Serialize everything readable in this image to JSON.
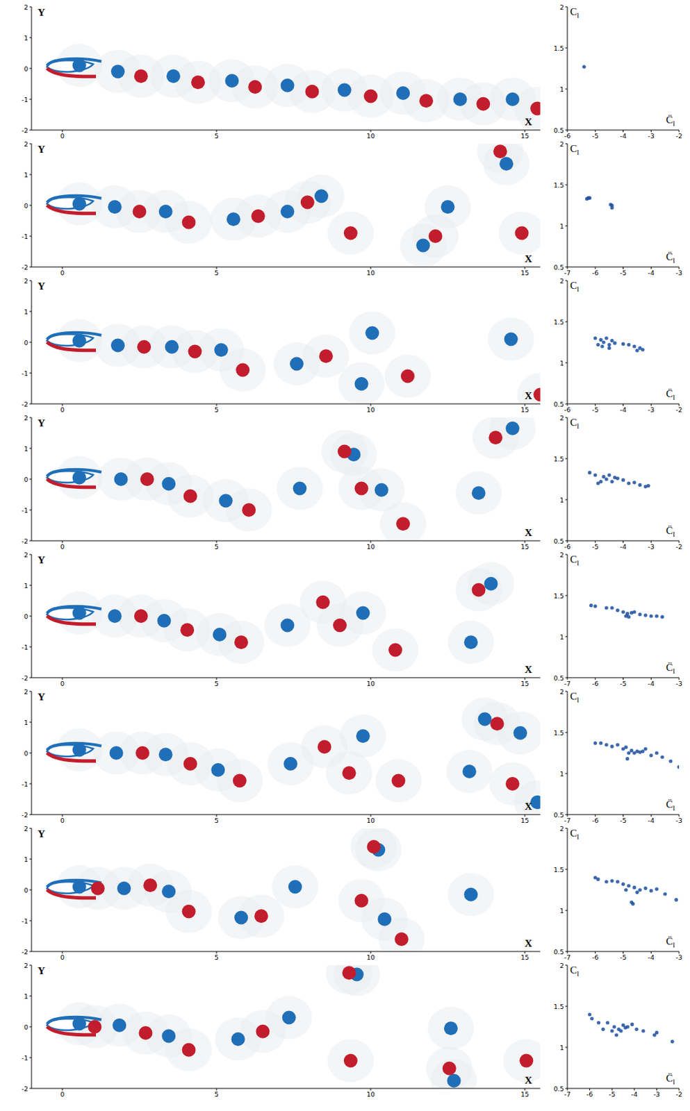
{
  "chart_data": [
    {
      "type": "scatter",
      "marker": "vortex",
      "xlabel": "X",
      "ylabel": "Y",
      "xlim": [
        -1,
        15.5
      ],
      "ylim": [
        -2,
        2
      ],
      "xticks": [
        0,
        5,
        10,
        15
      ],
      "yticks": [
        -2,
        -1,
        0,
        1,
        2
      ],
      "series": [
        {
          "color": "#1f6fb8",
          "x": [
            0.55,
            1.8,
            3.6,
            5.5,
            7.3,
            9.15,
            11.05,
            12.9,
            14.6
          ],
          "values": [
            0.1,
            -0.1,
            -0.25,
            -0.4,
            -0.55,
            -0.7,
            -0.8,
            -1.0,
            -1.0
          ]
        },
        {
          "color": "#c21d2c",
          "x": [
            2.55,
            4.4,
            6.25,
            8.1,
            10,
            11.8,
            13.65,
            15.4
          ],
          "values": [
            -0.25,
            -0.45,
            -0.6,
            -0.75,
            -0.9,
            -1.05,
            -1.15,
            -1.3
          ]
        }
      ]
    },
    {
      "type": "scatter",
      "marker": "dot",
      "xlabel": "C̈",
      "xlabel_sub": "l",
      "ylabel": "C",
      "ylabel_sub": "l",
      "xlim": [
        -6,
        -2
      ],
      "ylim": [
        0.5,
        2
      ],
      "xticks": [
        -6,
        -5,
        -4,
        -3,
        -2
      ],
      "yticks": [
        0.5,
        1,
        1.5,
        2
      ],
      "series": [
        {
          "color": "#1a4f9c",
          "x": [
            -5.4
          ],
          "values": [
            1.27
          ]
        }
      ]
    },
    {
      "type": "scatter",
      "marker": "vortex",
      "xlabel": "X",
      "ylabel": "Y",
      "xlim": [
        -1,
        15.5
      ],
      "ylim": [
        -2,
        2
      ],
      "xticks": [
        0,
        5,
        10,
        15
      ],
      "yticks": [
        -2,
        -1,
        0,
        1,
        2
      ],
      "series": [
        {
          "color": "#1f6fb8",
          "x": [
            0.55,
            1.7,
            3.35,
            5.55,
            7.3,
            8.4,
            12.5,
            11.7,
            14.4
          ],
          "values": [
            0.05,
            -0.05,
            -0.2,
            -0.45,
            -0.2,
            0.3,
            -0.05,
            -1.3,
            1.35
          ]
        },
        {
          "color": "#c21d2c",
          "x": [
            2.5,
            4.1,
            6.35,
            7.95,
            9.35,
            12.1,
            14.9,
            14.2
          ],
          "values": [
            -0.2,
            -0.55,
            -0.35,
            0.1,
            -0.9,
            -1.0,
            -0.9,
            1.75
          ]
        }
      ]
    },
    {
      "type": "scatter",
      "marker": "dot",
      "xlabel": "C̈",
      "xlabel_sub": "l",
      "ylabel": "C",
      "ylabel_sub": "l",
      "xlim": [
        -7,
        -3
      ],
      "ylim": [
        0.5,
        2
      ],
      "xticks": [
        -7,
        -6,
        -5,
        -4,
        -3
      ],
      "yticks": [
        0.5,
        1,
        1.5,
        2
      ],
      "series": [
        {
          "color": "#1a4f9c",
          "x": [
            -6.3,
            -6.25,
            -6.2,
            -5.45,
            -5.4,
            -5.4
          ],
          "values": [
            1.33,
            1.34,
            1.34,
            1.26,
            1.22,
            1.25
          ]
        }
      ]
    },
    {
      "type": "scatter",
      "marker": "vortex",
      "xlabel": "X",
      "ylabel": "Y",
      "xlim": [
        -1,
        15.5
      ],
      "ylim": [
        -2,
        2
      ],
      "xticks": [
        0,
        5,
        10,
        15
      ],
      "yticks": [
        -2,
        -1,
        0,
        1,
        2
      ],
      "series": [
        {
          "color": "#1f6fb8",
          "x": [
            0.55,
            1.8,
            3.55,
            5.15,
            7.6,
            10.05,
            9.7,
            14.55
          ],
          "values": [
            0.05,
            -0.1,
            -0.15,
            -0.25,
            -0.7,
            0.3,
            -1.35,
            0.1
          ]
        },
        {
          "color": "#c21d2c",
          "x": [
            2.65,
            4.3,
            5.85,
            8.55,
            11.2,
            15.5
          ],
          "values": [
            -0.15,
            -0.3,
            -0.9,
            -0.45,
            -1.1,
            -1.7
          ]
        }
      ]
    },
    {
      "type": "scatter",
      "marker": "dot",
      "xlabel": "C̈",
      "xlabel_sub": "l",
      "ylabel": "C",
      "ylabel_sub": "l",
      "xlim": [
        -6,
        -2
      ],
      "ylim": [
        0.5,
        2
      ],
      "xticks": [
        -6,
        -5,
        -4,
        -3,
        -2
      ],
      "yticks": [
        0.5,
        1,
        1.5,
        2
      ],
      "series": [
        {
          "color": "#1a4f9c",
          "x": [
            -5.0,
            -4.9,
            -4.8,
            -4.75,
            -4.7,
            -4.6,
            -4.5,
            -4.5,
            -4.4,
            -4.3,
            -4.0,
            -3.8,
            -3.6,
            -3.5,
            -3.3,
            -3.4
          ],
          "values": [
            1.3,
            1.22,
            1.28,
            1.2,
            1.25,
            1.3,
            1.22,
            1.18,
            1.27,
            1.24,
            1.23,
            1.22,
            1.2,
            1.15,
            1.16,
            1.18
          ]
        }
      ]
    },
    {
      "type": "scatter",
      "marker": "vortex",
      "xlabel": "X",
      "ylabel": "Y",
      "xlim": [
        -1,
        15.5
      ],
      "ylim": [
        -2,
        2
      ],
      "xticks": [
        0,
        5,
        10,
        15
      ],
      "yticks": [
        -2,
        -1,
        0,
        1,
        2
      ],
      "series": [
        {
          "color": "#1f6fb8",
          "x": [
            0.55,
            1.9,
            3.45,
            5.3,
            7.7,
            9.45,
            10.35,
            13.5,
            14.6
          ],
          "values": [
            0.05,
            0,
            -0.15,
            -0.7,
            -0.3,
            0.8,
            -0.35,
            -0.45,
            1.65
          ]
        },
        {
          "color": "#c21d2c",
          "x": [
            2.75,
            4.15,
            6.05,
            9.15,
            9.7,
            11.05,
            14.05
          ],
          "values": [
            0,
            -0.55,
            -1.0,
            0.9,
            -0.3,
            -1.45,
            1.35
          ]
        }
      ]
    },
    {
      "type": "scatter",
      "marker": "dot",
      "xlabel": "C̈",
      "xlabel_sub": "l",
      "ylabel": "C",
      "ylabel_sub": "l",
      "xlim": [
        -6,
        -2
      ],
      "ylim": [
        0.5,
        2
      ],
      "xticks": [
        -6,
        -5,
        -4,
        -3,
        -2
      ],
      "yticks": [
        0.5,
        1,
        1.5,
        2
      ],
      "series": [
        {
          "color": "#1a4f9c",
          "x": [
            -5.2,
            -5.0,
            -4.9,
            -4.8,
            -4.7,
            -4.6,
            -4.5,
            -4.4,
            -4.3,
            -4.0,
            -3.8,
            -3.6,
            -3.4,
            -3.2,
            -3.1,
            -4.2
          ],
          "values": [
            1.33,
            1.3,
            1.2,
            1.22,
            1.28,
            1.25,
            1.3,
            1.22,
            1.27,
            1.24,
            1.2,
            1.21,
            1.18,
            1.16,
            1.17,
            1.26
          ]
        }
      ]
    },
    {
      "type": "scatter",
      "marker": "vortex",
      "xlabel": "X",
      "ylabel": "Y",
      "xlim": [
        -1,
        15.5
      ],
      "ylim": [
        -2,
        2
      ],
      "xticks": [
        0,
        5,
        10,
        15
      ],
      "yticks": [
        -2,
        -1,
        0,
        1,
        2
      ],
      "series": [
        {
          "color": "#1f6fb8",
          "x": [
            0.55,
            1.7,
            3.3,
            5.1,
            7.3,
            9.75,
            13.25,
            13.9
          ],
          "values": [
            0.1,
            0,
            -0.15,
            -0.6,
            -0.3,
            0.1,
            -0.85,
            1.05
          ]
        },
        {
          "color": "#c21d2c",
          "x": [
            2.55,
            4.05,
            5.8,
            8.45,
            9.0,
            10.8,
            13.5
          ],
          "values": [
            0,
            -0.45,
            -0.85,
            0.45,
            -0.3,
            -1.1,
            0.85
          ]
        }
      ]
    },
    {
      "type": "scatter",
      "marker": "dot",
      "xlabel": "C̈",
      "xlabel_sub": "l",
      "ylabel": "C",
      "ylabel_sub": "l",
      "xlim": [
        -7,
        -3
      ],
      "ylim": [
        0.5,
        2
      ],
      "xticks": [
        -7,
        -6,
        -5,
        -4,
        -3
      ],
      "yticks": [
        0.5,
        1,
        1.5,
        2
      ],
      "series": [
        {
          "color": "#1a4f9c",
          "x": [
            -6.15,
            -6.0,
            -5.6,
            -5.4,
            -5.2,
            -5.0,
            -4.9,
            -4.85,
            -4.8,
            -4.6,
            -4.4,
            -4.2,
            -4.0,
            -3.8,
            -3.6,
            -4.7
          ],
          "values": [
            1.38,
            1.37,
            1.35,
            1.35,
            1.32,
            1.3,
            1.25,
            1.28,
            1.24,
            1.3,
            1.27,
            1.26,
            1.25,
            1.25,
            1.24,
            1.29
          ]
        }
      ]
    },
    {
      "type": "scatter",
      "marker": "vortex",
      "xlabel": "X",
      "ylabel": "Y",
      "xlim": [
        -1,
        15.5
      ],
      "ylim": [
        -2,
        2
      ],
      "xticks": [
        0,
        5,
        10,
        15
      ],
      "yticks": [
        -2,
        -1,
        0,
        1,
        2
      ],
      "series": [
        {
          "color": "#1f6fb8",
          "x": [
            0.55,
            1.75,
            3.35,
            5.05,
            7.4,
            9.75,
            13.2,
            14.85,
            13.7,
            15.4
          ],
          "values": [
            0.1,
            0,
            -0.05,
            -0.55,
            -0.35,
            0.55,
            -0.6,
            0.65,
            1.1,
            -1.6
          ]
        },
        {
          "color": "#c21d2c",
          "x": [
            2.6,
            4.15,
            5.75,
            8.5,
            9.3,
            10.9,
            14.1,
            14.6
          ],
          "values": [
            0,
            -0.35,
            -0.9,
            0.2,
            -0.65,
            -0.9,
            0.95,
            -1.0
          ]
        }
      ]
    },
    {
      "type": "scatter",
      "marker": "dot",
      "xlabel": "C̈",
      "xlabel_sub": "l",
      "ylabel": "C",
      "ylabel_sub": "l",
      "xlim": [
        -7,
        -3
      ],
      "ylim": [
        0.5,
        2
      ],
      "xticks": [
        -7,
        -6,
        -5,
        -4,
        -3
      ],
      "yticks": [
        0.5,
        1,
        1.5,
        2
      ],
      "series": [
        {
          "color": "#1a4f9c",
          "x": [
            -6.0,
            -5.8,
            -5.6,
            -5.4,
            -5.2,
            -5.0,
            -4.9,
            -4.85,
            -4.8,
            -4.7,
            -4.6,
            -4.5,
            -4.4,
            -4.2,
            -4.0,
            -3.8,
            -3.6,
            -3.3,
            -3.0,
            -4.3
          ],
          "values": [
            1.37,
            1.37,
            1.35,
            1.33,
            1.35,
            1.3,
            1.32,
            1.18,
            1.25,
            1.28,
            1.25,
            1.27,
            1.26,
            1.3,
            1.22,
            1.25,
            1.2,
            1.15,
            1.08,
            1.27
          ]
        }
      ]
    },
    {
      "type": "scatter",
      "marker": "vortex",
      "xlabel": "X",
      "ylabel": "Y",
      "xlim": [
        -1,
        15.5
      ],
      "ylim": [
        -2,
        2
      ],
      "xticks": [
        0,
        5,
        10,
        15
      ],
      "yticks": [
        -2,
        -1,
        0,
        1,
        2
      ],
      "series": [
        {
          "color": "#1f6fb8",
          "x": [
            0.55,
            2.0,
            3.45,
            5.8,
            7.55,
            10.25,
            10.45,
            13.25
          ],
          "values": [
            0.1,
            0.05,
            -0.05,
            -0.9,
            0.1,
            1.3,
            -0.95,
            -0.15
          ]
        },
        {
          "color": "#c21d2c",
          "x": [
            1.15,
            2.85,
            4.1,
            6.45,
            10.1,
            9.7,
            11.0
          ],
          "values": [
            0.05,
            0.15,
            -0.7,
            -0.85,
            1.4,
            -0.35,
            -1.6
          ]
        }
      ]
    },
    {
      "type": "scatter",
      "marker": "dot",
      "xlabel": "C̈",
      "xlabel_sub": "l",
      "ylabel": "C",
      "ylabel_sub": "l",
      "xlim": [
        -7,
        -3
      ],
      "ylim": [
        0.5,
        2
      ],
      "xticks": [
        -7,
        -6,
        -5,
        -4,
        -3
      ],
      "yticks": [
        0.5,
        1,
        1.5,
        2
      ],
      "series": [
        {
          "color": "#1a4f9c",
          "x": [
            -6.0,
            -5.9,
            -5.6,
            -5.4,
            -5.2,
            -5.0,
            -4.9,
            -4.8,
            -4.7,
            -4.65,
            -4.6,
            -4.4,
            -4.2,
            -4.0,
            -3.8,
            -3.5,
            -3.1,
            -4.5
          ],
          "values": [
            1.4,
            1.38,
            1.35,
            1.36,
            1.35,
            1.32,
            1.25,
            1.3,
            1.1,
            1.08,
            1.28,
            1.25,
            1.27,
            1.24,
            1.26,
            1.2,
            1.13,
            1.22
          ]
        }
      ]
    },
    {
      "type": "scatter",
      "marker": "vortex",
      "xlabel": "X",
      "ylabel": "Y",
      "xlim": [
        -1,
        15.5
      ],
      "ylim": [
        -2,
        2
      ],
      "xticks": [
        0,
        5,
        10,
        15
      ],
      "yticks": [
        -2,
        -1,
        0,
        1,
        2
      ],
      "series": [
        {
          "color": "#1f6fb8",
          "x": [
            0.55,
            1.85,
            3.45,
            5.7,
            7.35,
            9.55,
            12.6,
            12.7
          ],
          "values": [
            0.1,
            0.05,
            -0.3,
            -0.4,
            0.3,
            1.7,
            -0.05,
            -1.75
          ]
        },
        {
          "color": "#c21d2c",
          "x": [
            1.05,
            2.7,
            4.1,
            6.5,
            9.3,
            9.35,
            12.55,
            15.05
          ],
          "values": [
            0,
            -0.2,
            -0.75,
            -0.15,
            1.75,
            -1.1,
            -1.35,
            -1.1
          ]
        }
      ]
    },
    {
      "type": "scatter",
      "marker": "dot",
      "xlabel": "C̈",
      "xlabel_sub": "l",
      "ylabel": "C",
      "ylabel_sub": "l",
      "xlim": [
        -7,
        -2
      ],
      "ylim": [
        0.5,
        2
      ],
      "xticks": [
        -7,
        -6,
        -5,
        -4,
        -3,
        -2
      ],
      "yticks": [
        0.5,
        1,
        1.5,
        2
      ],
      "series": [
        {
          "color": "#1a4f9c",
          "x": [
            -6.0,
            -5.9,
            -5.6,
            -5.4,
            -5.2,
            -5.0,
            -4.9,
            -4.8,
            -4.7,
            -4.6,
            -4.5,
            -4.3,
            -4.1,
            -3.9,
            -3.6,
            -3.1,
            -3.0,
            -2.3,
            -4.4
          ],
          "values": [
            1.4,
            1.35,
            1.3,
            1.22,
            1.3,
            1.2,
            1.25,
            1.15,
            1.22,
            1.2,
            1.27,
            1.25,
            1.28,
            1.22,
            1.2,
            1.15,
            1.18,
            1.07,
            1.24
          ]
        }
      ]
    }
  ]
}
